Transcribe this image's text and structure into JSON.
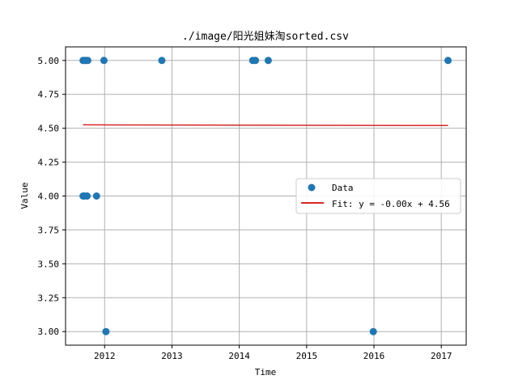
{
  "chart_data": {
    "type": "scatter",
    "title": "./image/阳光姐妹淘sorted.csv",
    "xlabel": "Time",
    "ylabel": "Value",
    "xlim": [
      2011.42,
      2017.37
    ],
    "ylim": [
      2.9,
      5.1
    ],
    "x_ticks": [
      2012,
      2013,
      2014,
      2015,
      2016,
      2017
    ],
    "x_tick_labels": [
      "2012",
      "2013",
      "2014",
      "2015",
      "2016",
      "2017"
    ],
    "y_ticks": [
      3.0,
      3.25,
      3.5,
      3.75,
      4.0,
      4.25,
      4.5,
      4.75,
      5.0
    ],
    "y_tick_labels": [
      "3.00",
      "3.25",
      "3.50",
      "3.75",
      "4.00",
      "4.25",
      "4.50",
      "4.75",
      "5.00"
    ],
    "grid": true,
    "legend_position": "center-right",
    "series": [
      {
        "name": "Data",
        "kind": "scatter",
        "color": "#1f77b4",
        "points": [
          {
            "x": 2011.68,
            "y": 5.0
          },
          {
            "x": 2011.7,
            "y": 5.0
          },
          {
            "x": 2011.72,
            "y": 5.0
          },
          {
            "x": 2011.75,
            "y": 5.0
          },
          {
            "x": 2011.99,
            "y": 5.0
          },
          {
            "x": 2012.85,
            "y": 5.0
          },
          {
            "x": 2014.2,
            "y": 5.0
          },
          {
            "x": 2014.24,
            "y": 5.0
          },
          {
            "x": 2014.43,
            "y": 5.0
          },
          {
            "x": 2017.1,
            "y": 5.0
          },
          {
            "x": 2011.68,
            "y": 4.0
          },
          {
            "x": 2011.7,
            "y": 4.0
          },
          {
            "x": 2011.74,
            "y": 4.0
          },
          {
            "x": 2011.88,
            "y": 4.0
          },
          {
            "x": 2012.02,
            "y": 3.0
          },
          {
            "x": 2015.99,
            "y": 3.0
          }
        ]
      },
      {
        "name": "Fit: y = -0.00x + 4.56",
        "kind": "line",
        "color": "#d62728",
        "points": [
          {
            "x": 2011.68,
            "y": 4.525
          },
          {
            "x": 2017.1,
            "y": 4.52
          }
        ]
      }
    ]
  }
}
